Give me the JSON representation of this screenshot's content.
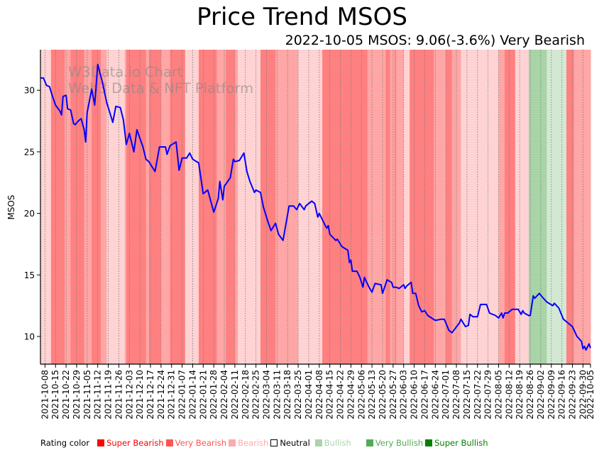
{
  "chart_data": {
    "type": "line",
    "title": "Price Trend MSOS",
    "subtitle": "2022-10-05 MSOS: 9.06(-3.6%) Very Bearish",
    "xlabel": "",
    "ylabel": "MSOS",
    "xlim": [
      "2021-10-05",
      "2022-10-05"
    ],
    "ylim": [
      7.75,
      33.3
    ],
    "yticks": [
      10,
      15,
      20,
      25,
      30
    ],
    "xticks": [
      "2021-10-08",
      "2021-10-15",
      "2021-10-22",
      "2021-10-29",
      "2021-11-05",
      "2021-11-12",
      "2021-11-19",
      "2021-11-26",
      "2021-12-03",
      "2021-12-10",
      "2021-12-17",
      "2021-12-24",
      "2021-12-31",
      "2022-01-07",
      "2022-01-14",
      "2022-01-21",
      "2022-01-28",
      "2022-02-04",
      "2022-02-11",
      "2022-02-18",
      "2022-02-25",
      "2022-03-04",
      "2022-03-11",
      "2022-03-18",
      "2022-03-25",
      "2022-04-01",
      "2022-04-08",
      "2022-04-15",
      "2022-04-22",
      "2022-04-29",
      "2022-05-06",
      "2022-05-13",
      "2022-05-20",
      "2022-05-27",
      "2022-06-03",
      "2022-06-10",
      "2022-06-17",
      "2022-06-24",
      "2022-07-01",
      "2022-07-08",
      "2022-07-15",
      "2022-07-22",
      "2022-07-29",
      "2022-08-05",
      "2022-08-12",
      "2022-08-19",
      "2022-08-26",
      "2022-09-02",
      "2022-09-09",
      "2022-09-16",
      "2022-09-23",
      "2022-09-30",
      "2022-10-05"
    ],
    "grid": "vertical-dotted",
    "watermark": [
      "W3Data.io Chart",
      "Web3 Data & NFT Platform"
    ],
    "series": [
      {
        "name": "MSOS",
        "color": "#0000ff",
        "points": [
          [
            "2021-10-05",
            31.0
          ],
          [
            "2021-10-07",
            31.0
          ],
          [
            "2021-10-09",
            30.4
          ],
          [
            "2021-10-11",
            30.3
          ],
          [
            "2021-10-13",
            29.5
          ],
          [
            "2021-10-15",
            28.8
          ],
          [
            "2021-10-18",
            28.3
          ],
          [
            "2021-10-19",
            28.0
          ],
          [
            "2021-10-20",
            29.5
          ],
          [
            "2021-10-22",
            29.6
          ],
          [
            "2021-10-23",
            28.5
          ],
          [
            "2021-10-25",
            28.4
          ],
          [
            "2021-10-27",
            27.3
          ],
          [
            "2021-10-28",
            27.2
          ],
          [
            "2021-10-30",
            27.5
          ],
          [
            "2021-11-01",
            27.7
          ],
          [
            "2021-11-03",
            26.8
          ],
          [
            "2021-11-04",
            25.8
          ],
          [
            "2021-11-05",
            28.2
          ],
          [
            "2021-11-08",
            30.1
          ],
          [
            "2021-11-10",
            28.8
          ],
          [
            "2021-11-12",
            32.1
          ],
          [
            "2021-11-15",
            30.7
          ],
          [
            "2021-11-18",
            29.0
          ],
          [
            "2021-11-22",
            27.4
          ],
          [
            "2021-11-24",
            28.7
          ],
          [
            "2021-11-27",
            28.6
          ],
          [
            "2021-11-29",
            27.6
          ],
          [
            "2021-12-01",
            25.6
          ],
          [
            "2021-12-03",
            26.5
          ],
          [
            "2021-12-06",
            25.0
          ],
          [
            "2021-12-08",
            26.8
          ],
          [
            "2021-12-12",
            25.4
          ],
          [
            "2021-12-14",
            24.4
          ],
          [
            "2021-12-16",
            24.2
          ],
          [
            "2021-12-20",
            23.4
          ],
          [
            "2021-12-23",
            25.4
          ],
          [
            "2021-12-27",
            25.4
          ],
          [
            "2021-12-28",
            24.8
          ],
          [
            "2021-12-30",
            25.5
          ],
          [
            "2022-01-03",
            25.8
          ],
          [
            "2022-01-05",
            23.5
          ],
          [
            "2022-01-07",
            24.5
          ],
          [
            "2022-01-10",
            24.5
          ],
          [
            "2022-01-12",
            24.9
          ],
          [
            "2022-01-14",
            24.4
          ],
          [
            "2022-01-18",
            24.1
          ],
          [
            "2022-01-21",
            21.6
          ],
          [
            "2022-01-24",
            21.9
          ],
          [
            "2022-01-28",
            20.1
          ],
          [
            "2022-01-31",
            21.2
          ],
          [
            "2022-02-01",
            22.6
          ],
          [
            "2022-02-03",
            21.1
          ],
          [
            "2022-02-04",
            22.2
          ],
          [
            "2022-02-08",
            22.9
          ],
          [
            "2022-02-10",
            24.4
          ],
          [
            "2022-02-11",
            24.2
          ],
          [
            "2022-02-14",
            24.3
          ],
          [
            "2022-02-17",
            24.9
          ],
          [
            "2022-02-19",
            23.4
          ],
          [
            "2022-02-21",
            22.6
          ],
          [
            "2022-02-24",
            21.7
          ],
          [
            "2022-02-25",
            21.9
          ],
          [
            "2022-02-28",
            21.7
          ],
          [
            "2022-03-02",
            20.5
          ],
          [
            "2022-03-05",
            19.3
          ],
          [
            "2022-03-07",
            18.6
          ],
          [
            "2022-03-10",
            19.2
          ],
          [
            "2022-03-12",
            18.3
          ],
          [
            "2022-03-15",
            17.8
          ],
          [
            "2022-03-19",
            20.6
          ],
          [
            "2022-03-22",
            20.6
          ],
          [
            "2022-03-24",
            20.3
          ],
          [
            "2022-03-26",
            20.8
          ],
          [
            "2022-03-29",
            20.3
          ],
          [
            "2022-03-30",
            20.6
          ],
          [
            "2022-04-03",
            21.0
          ],
          [
            "2022-04-05",
            20.8
          ],
          [
            "2022-04-07",
            19.7
          ],
          [
            "2022-04-08",
            20.0
          ],
          [
            "2022-04-10",
            19.5
          ],
          [
            "2022-04-12",
            19.0
          ],
          [
            "2022-04-13",
            18.8
          ],
          [
            "2022-04-14",
            19.0
          ],
          [
            "2022-04-15",
            18.3
          ],
          [
            "2022-04-19",
            17.8
          ],
          [
            "2022-04-20",
            17.9
          ],
          [
            "2022-04-23",
            17.3
          ],
          [
            "2022-04-27",
            17.0
          ],
          [
            "2022-04-28",
            16.0
          ],
          [
            "2022-04-29",
            16.2
          ],
          [
            "2022-04-30",
            15.3
          ],
          [
            "2022-05-03",
            15.3
          ],
          [
            "2022-05-05",
            14.8
          ],
          [
            "2022-05-07",
            14.0
          ],
          [
            "2022-05-08",
            14.8
          ],
          [
            "2022-05-11",
            14.0
          ],
          [
            "2022-05-13",
            13.6
          ],
          [
            "2022-05-15",
            14.3
          ],
          [
            "2022-05-19",
            14.2
          ],
          [
            "2022-05-20",
            13.5
          ],
          [
            "2022-05-23",
            14.6
          ],
          [
            "2022-05-26",
            14.4
          ],
          [
            "2022-05-27",
            14.0
          ],
          [
            "2022-05-29",
            14.0
          ],
          [
            "2022-05-31",
            13.9
          ],
          [
            "2022-06-03",
            14.2
          ],
          [
            "2022-06-04",
            13.9
          ],
          [
            "2022-06-05",
            14.1
          ],
          [
            "2022-06-08",
            14.4
          ],
          [
            "2022-06-09",
            13.5
          ],
          [
            "2022-06-11",
            13.5
          ],
          [
            "2022-06-13",
            12.5
          ],
          [
            "2022-06-15",
            12.0
          ],
          [
            "2022-06-17",
            12.1
          ],
          [
            "2022-06-19",
            11.7
          ],
          [
            "2022-06-24",
            11.3
          ],
          [
            "2022-06-28",
            11.4
          ],
          [
            "2022-06-30",
            11.4
          ],
          [
            "2022-07-03",
            10.5
          ],
          [
            "2022-07-05",
            10.3
          ],
          [
            "2022-07-10",
            11.1
          ],
          [
            "2022-07-11",
            11.4
          ],
          [
            "2022-07-14",
            10.8
          ],
          [
            "2022-07-16",
            10.9
          ],
          [
            "2022-07-17",
            11.8
          ],
          [
            "2022-07-19",
            11.6
          ],
          [
            "2022-07-22",
            11.6
          ],
          [
            "2022-07-24",
            12.6
          ],
          [
            "2022-07-28",
            12.6
          ],
          [
            "2022-07-30",
            11.9
          ],
          [
            "2022-08-03",
            11.7
          ],
          [
            "2022-08-05",
            11.5
          ],
          [
            "2022-08-07",
            11.9
          ],
          [
            "2022-08-08",
            11.5
          ],
          [
            "2022-08-09",
            11.9
          ],
          [
            "2022-08-11",
            11.9
          ],
          [
            "2022-08-14",
            12.2
          ],
          [
            "2022-08-18",
            12.2
          ],
          [
            "2022-08-20",
            11.8
          ],
          [
            "2022-08-21",
            12.1
          ],
          [
            "2022-08-22",
            11.9
          ],
          [
            "2022-08-25",
            11.7
          ],
          [
            "2022-08-26",
            11.7
          ],
          [
            "2022-08-28",
            13.3
          ],
          [
            "2022-08-29",
            13.1
          ],
          [
            "2022-09-01",
            13.5
          ],
          [
            "2022-09-03",
            13.2
          ],
          [
            "2022-09-06",
            12.8
          ],
          [
            "2022-09-10",
            12.5
          ],
          [
            "2022-09-11",
            12.7
          ],
          [
            "2022-09-14",
            12.3
          ],
          [
            "2022-09-17",
            11.4
          ],
          [
            "2022-09-23",
            10.8
          ],
          [
            "2022-09-26",
            10.0
          ],
          [
            "2022-09-29",
            9.6
          ],
          [
            "2022-09-30",
            9.0
          ],
          [
            "2022-10-01",
            9.2
          ],
          [
            "2022-10-02",
            8.9
          ],
          [
            "2022-10-04",
            9.4
          ],
          [
            "2022-10-05",
            9.06
          ]
        ]
      }
    ],
    "rating_bands": [
      [
        "2021-10-05",
        "2021-10-12",
        "light"
      ],
      [
        "2021-10-12",
        "2021-10-21",
        "very_bearish"
      ],
      [
        "2021-10-21",
        "2021-10-25",
        "bearish"
      ],
      [
        "2021-10-25",
        "2021-11-03",
        "very_bearish"
      ],
      [
        "2021-11-03",
        "2021-11-08",
        "bearish"
      ],
      [
        "2021-11-08",
        "2021-11-14",
        "very_bearish"
      ],
      [
        "2021-11-14",
        "2021-11-18",
        "bearish"
      ],
      [
        "2021-11-18",
        "2021-11-30",
        "light"
      ],
      [
        "2021-11-30",
        "2021-12-01",
        "bearish"
      ],
      [
        "2021-12-01",
        "2021-12-14",
        "very_bearish"
      ],
      [
        "2021-12-14",
        "2021-12-16",
        "bearish"
      ],
      [
        "2021-12-16",
        "2021-12-24",
        "very_bearish"
      ],
      [
        "2021-12-24",
        "2021-12-30",
        "bearish"
      ],
      [
        "2021-12-30",
        "2022-01-09",
        "very_bearish"
      ],
      [
        "2022-01-09",
        "2022-01-18",
        "light"
      ],
      [
        "2022-01-18",
        "2022-01-30",
        "very_bearish"
      ],
      [
        "2022-01-30",
        "2022-02-05",
        "bearish"
      ],
      [
        "2022-02-05",
        "2022-02-11",
        "very_bearish"
      ],
      [
        "2022-02-11",
        "2022-02-13",
        "bearish"
      ],
      [
        "2022-02-13",
        "2022-02-28",
        "light"
      ],
      [
        "2022-02-28",
        "2022-03-10",
        "very_bearish"
      ],
      [
        "2022-03-10",
        "2022-03-18",
        "bearish"
      ],
      [
        "2022-03-18",
        "2022-03-25",
        "bearish"
      ],
      [
        "2022-03-25",
        "2022-04-02",
        "light"
      ],
      [
        "2022-04-02",
        "2022-04-10",
        "light"
      ],
      [
        "2022-04-10",
        "2022-05-10",
        "very_bearish"
      ],
      [
        "2022-05-10",
        "2022-05-15",
        "bearish"
      ],
      [
        "2022-05-15",
        "2022-05-22",
        "bearish"
      ],
      [
        "2022-05-22",
        "2022-05-25",
        "very_bearish"
      ],
      [
        "2022-05-25",
        "2022-05-28",
        "bearish"
      ],
      [
        "2022-05-28",
        "2022-05-29",
        "very_bearish"
      ],
      [
        "2022-05-29",
        "2022-06-03",
        "bearish"
      ],
      [
        "2022-06-03",
        "2022-06-07",
        "light"
      ],
      [
        "2022-06-07",
        "2022-06-23",
        "very_bearish"
      ],
      [
        "2022-06-23",
        "2022-07-01",
        "bearish"
      ],
      [
        "2022-07-01",
        "2022-07-05",
        "very_bearish"
      ],
      [
        "2022-07-05",
        "2022-07-11",
        "bearish"
      ],
      [
        "2022-07-11",
        "2022-08-05",
        "light"
      ],
      [
        "2022-08-05",
        "2022-08-09",
        "bearish"
      ],
      [
        "2022-08-09",
        "2022-08-16",
        "very_bearish"
      ],
      [
        "2022-08-16",
        "2022-08-25",
        "light"
      ],
      [
        "2022-08-25",
        "2022-09-06",
        "very_bullish"
      ],
      [
        "2022-09-06",
        "2022-09-19",
        "bullish"
      ],
      [
        "2022-09-19",
        "2022-09-24",
        "very_bearish"
      ],
      [
        "2022-09-24",
        "2022-10-05",
        "bearish"
      ]
    ],
    "band_colors": {
      "very_bearish": "#ff8080",
      "bearish": "#ffa6a6",
      "light": "#ffd3d3",
      "bullish": "#d3e8d3",
      "very_bullish": "#a8d4a8"
    }
  },
  "legend": {
    "heading": "Rating color",
    "items": [
      {
        "label": "Super Bearish",
        "color": "#ff0000",
        "text_color": "#ff0000"
      },
      {
        "label": "Very Bearish",
        "color": "#ff5555",
        "text_color": "#ff5555"
      },
      {
        "label": "Bearish",
        "color": "#ffaaaa",
        "text_color": "#ffaaaa"
      },
      {
        "label": "Neutral",
        "color": "#ffffff",
        "text_color": "#000000",
        "outline": true
      },
      {
        "label": "Bullish",
        "color": "#aad4aa",
        "text_color": "#aad4aa"
      },
      {
        "label": "Very Bullish",
        "color": "#55aa55",
        "text_color": "#55aa55"
      },
      {
        "label": "Super Bullish",
        "color": "#008000",
        "text_color": "#008000"
      }
    ]
  }
}
